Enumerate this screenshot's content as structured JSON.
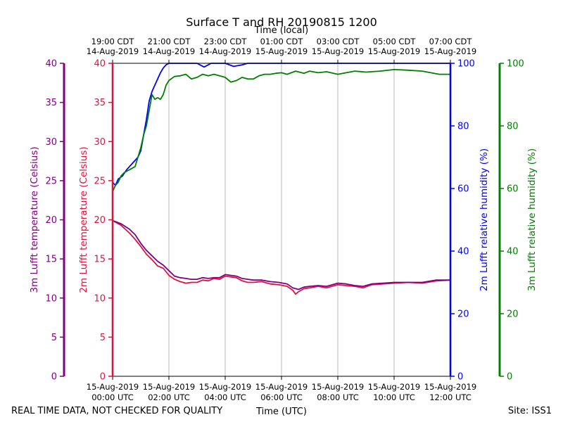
{
  "chart_data": {
    "type": "line",
    "title": "Surface T and RH 20190815 1200",
    "top_axis_title": "Time (local)",
    "bottom_axis_title": "Time (UTC)",
    "footer_left": "REAL TIME DATA, NOT CHECKED FOR QUALITY",
    "footer_right": "Site: ISS1",
    "x_range_hours": [
      0,
      12
    ],
    "x_ticks_hours": [
      0,
      2,
      4,
      6,
      8,
      10,
      12
    ],
    "x_ticks_utc": [
      [
        "15-Aug-2019",
        "00:00 UTC"
      ],
      [
        "15-Aug-2019",
        "02:00 UTC"
      ],
      [
        "15-Aug-2019",
        "04:00 UTC"
      ],
      [
        "15-Aug-2019",
        "06:00 UTC"
      ],
      [
        "15-Aug-2019",
        "08:00 UTC"
      ],
      [
        "15-Aug-2019",
        "10:00 UTC"
      ],
      [
        "15-Aug-2019",
        "12:00 UTC"
      ]
    ],
    "x_ticks_local": [
      [
        "19:00 CDT",
        "14-Aug-2019"
      ],
      [
        "21:00 CDT",
        "14-Aug-2019"
      ],
      [
        "23:00 CDT",
        "14-Aug-2019"
      ],
      [
        "01:00 CDT",
        "15-Aug-2019"
      ],
      [
        "03:00 CDT",
        "15-Aug-2019"
      ],
      [
        "05:00 CDT",
        "15-Aug-2019"
      ],
      [
        "07:00 CDT",
        "15-Aug-2019"
      ]
    ],
    "axes": {
      "t3": {
        "label": "3m Lufft temperature (Celsius)",
        "range": [
          0,
          40
        ],
        "ticks": [
          0,
          5,
          10,
          15,
          20,
          25,
          30,
          35,
          40
        ],
        "color": "#800080"
      },
      "t2": {
        "label": "2m Lufft temperature (Celsius)",
        "range": [
          0,
          40
        ],
        "ticks": [
          0,
          5,
          10,
          15,
          20,
          25,
          30,
          35,
          40
        ],
        "color": "#dc143c"
      },
      "rh2": {
        "label": "2m Lufft relative humidity (%)",
        "range": [
          0,
          100
        ],
        "ticks": [
          0,
          20,
          40,
          60,
          80,
          100
        ],
        "color": "#0000ff"
      },
      "rh3": {
        "label": "3m Lufft relative humidity (%)",
        "range": [
          0,
          100
        ],
        "ticks": [
          0,
          20,
          40,
          60,
          80,
          100
        ],
        "color": "#008000"
      }
    },
    "series": [
      {
        "name": "2m Lufft relative humidity",
        "axis": "rh2",
        "color": "#0000ff",
        "points": [
          [
            0,
            62
          ],
          [
            0.1,
            61
          ],
          [
            0.2,
            63
          ],
          [
            0.35,
            64
          ],
          [
            0.5,
            66
          ],
          [
            0.6,
            67
          ],
          [
            0.7,
            68
          ],
          [
            0.8,
            69
          ],
          [
            0.9,
            70
          ],
          [
            1.0,
            72
          ],
          [
            1.1,
            77
          ],
          [
            1.2,
            82
          ],
          [
            1.3,
            88
          ],
          [
            1.4,
            91
          ],
          [
            1.5,
            93
          ],
          [
            1.6,
            95
          ],
          [
            1.7,
            97
          ],
          [
            1.8,
            98.5
          ],
          [
            1.9,
            99.5
          ],
          [
            2.0,
            100
          ],
          [
            2.5,
            100
          ],
          [
            3.0,
            100
          ],
          [
            3.25,
            98.8
          ],
          [
            3.5,
            100
          ],
          [
            4.0,
            100
          ],
          [
            4.3,
            99
          ],
          [
            4.6,
            99.5
          ],
          [
            4.8,
            100
          ],
          [
            6.0,
            100
          ],
          [
            8.0,
            100
          ],
          [
            10.0,
            100
          ],
          [
            12.0,
            100
          ]
        ]
      },
      {
        "name": "3m Lufft relative humidity",
        "axis": "rh3",
        "color": "#008000",
        "points": [
          [
            0,
            59
          ],
          [
            0.1,
            61
          ],
          [
            0.2,
            62
          ],
          [
            0.3,
            64
          ],
          [
            0.4,
            65
          ],
          [
            0.5,
            65.5
          ],
          [
            0.6,
            66
          ],
          [
            0.7,
            66.5
          ],
          [
            0.8,
            67
          ],
          [
            0.9,
            70
          ],
          [
            1.0,
            73
          ],
          [
            1.1,
            77
          ],
          [
            1.2,
            80
          ],
          [
            1.3,
            85
          ],
          [
            1.4,
            90
          ],
          [
            1.5,
            88.5
          ],
          [
            1.6,
            89
          ],
          [
            1.7,
            88.5
          ],
          [
            1.8,
            90
          ],
          [
            1.9,
            93
          ],
          [
            2.0,
            94.5
          ],
          [
            2.2,
            95.8
          ],
          [
            2.4,
            96
          ],
          [
            2.6,
            96.5
          ],
          [
            2.8,
            95
          ],
          [
            3.0,
            95.5
          ],
          [
            3.2,
            96.5
          ],
          [
            3.4,
            96
          ],
          [
            3.6,
            96.5
          ],
          [
            3.8,
            96
          ],
          [
            4.0,
            95.5
          ],
          [
            4.2,
            94
          ],
          [
            4.4,
            94.5
          ],
          [
            4.6,
            95.5
          ],
          [
            4.8,
            95
          ],
          [
            5.0,
            95
          ],
          [
            5.2,
            96
          ],
          [
            5.4,
            96.5
          ],
          [
            5.6,
            96.5
          ],
          [
            5.8,
            96.8
          ],
          [
            6.0,
            97
          ],
          [
            6.2,
            96.5
          ],
          [
            6.5,
            97.5
          ],
          [
            6.8,
            96.8
          ],
          [
            7.0,
            97.5
          ],
          [
            7.3,
            97
          ],
          [
            7.6,
            97.3
          ],
          [
            8.0,
            96.5
          ],
          [
            8.3,
            97
          ],
          [
            8.6,
            97.5
          ],
          [
            9.0,
            97.2
          ],
          [
            9.5,
            97.5
          ],
          [
            10.0,
            98
          ],
          [
            10.5,
            97.8
          ],
          [
            11.0,
            97.5
          ],
          [
            11.3,
            97
          ],
          [
            11.6,
            96.5
          ],
          [
            12.0,
            96.5
          ]
        ]
      },
      {
        "name": "2m Lufft temperature",
        "axis": "t2",
        "color": "#dc143c",
        "points": [
          [
            0,
            19.9
          ],
          [
            0.3,
            19.3
          ],
          [
            0.6,
            18.3
          ],
          [
            0.8,
            17.5
          ],
          [
            1.0,
            16.6
          ],
          [
            1.2,
            15.6
          ],
          [
            1.4,
            14.9
          ],
          [
            1.6,
            14.1
          ],
          [
            1.8,
            13.8
          ],
          [
            2.0,
            12.9
          ],
          [
            2.2,
            12.4
          ],
          [
            2.4,
            12.1
          ],
          [
            2.6,
            11.9
          ],
          [
            2.8,
            12.0
          ],
          [
            3.0,
            12.0
          ],
          [
            3.2,
            12.3
          ],
          [
            3.4,
            12.2
          ],
          [
            3.6,
            12.5
          ],
          [
            3.8,
            12.4
          ],
          [
            4.0,
            12.8
          ],
          [
            4.2,
            12.7
          ],
          [
            4.4,
            12.6
          ],
          [
            4.6,
            12.2
          ],
          [
            4.8,
            12.0
          ],
          [
            5.0,
            12.0
          ],
          [
            5.3,
            12.1
          ],
          [
            5.6,
            11.8
          ],
          [
            5.9,
            11.7
          ],
          [
            6.2,
            11.5
          ],
          [
            6.4,
            11.0
          ],
          [
            6.5,
            10.5
          ],
          [
            6.6,
            10.8
          ],
          [
            6.8,
            11.2
          ],
          [
            7.0,
            11.3
          ],
          [
            7.3,
            11.5
          ],
          [
            7.6,
            11.3
          ],
          [
            8.0,
            11.7
          ],
          [
            8.3,
            11.6
          ],
          [
            8.6,
            11.5
          ],
          [
            8.9,
            11.3
          ],
          [
            9.2,
            11.7
          ],
          [
            9.6,
            11.8
          ],
          [
            10.0,
            11.9
          ],
          [
            10.5,
            12.0
          ],
          [
            11.0,
            11.9
          ],
          [
            11.5,
            12.2
          ],
          [
            12.0,
            12.3
          ]
        ]
      },
      {
        "name": "3m Lufft temperature",
        "axis": "t3",
        "color": "#800080",
        "points": [
          [
            0,
            19.9
          ],
          [
            0.3,
            19.5
          ],
          [
            0.6,
            18.8
          ],
          [
            0.8,
            18.1
          ],
          [
            1.0,
            17.0
          ],
          [
            1.2,
            16.1
          ],
          [
            1.4,
            15.4
          ],
          [
            1.6,
            14.7
          ],
          [
            1.8,
            14.2
          ],
          [
            2.0,
            13.5
          ],
          [
            2.2,
            12.8
          ],
          [
            2.4,
            12.6
          ],
          [
            2.6,
            12.5
          ],
          [
            2.8,
            12.4
          ],
          [
            3.0,
            12.4
          ],
          [
            3.2,
            12.6
          ],
          [
            3.4,
            12.5
          ],
          [
            3.6,
            12.6
          ],
          [
            3.8,
            12.6
          ],
          [
            4.0,
            13.0
          ],
          [
            4.2,
            12.9
          ],
          [
            4.4,
            12.8
          ],
          [
            4.6,
            12.5
          ],
          [
            4.8,
            12.4
          ],
          [
            5.0,
            12.3
          ],
          [
            5.3,
            12.3
          ],
          [
            5.6,
            12.1
          ],
          [
            5.9,
            12.0
          ],
          [
            6.2,
            11.8
          ],
          [
            6.4,
            11.3
          ],
          [
            6.6,
            11.1
          ],
          [
            6.8,
            11.4
          ],
          [
            7.0,
            11.5
          ],
          [
            7.3,
            11.6
          ],
          [
            7.6,
            11.5
          ],
          [
            8.0,
            11.9
          ],
          [
            8.3,
            11.8
          ],
          [
            8.6,
            11.6
          ],
          [
            8.9,
            11.5
          ],
          [
            9.2,
            11.8
          ],
          [
            9.6,
            11.9
          ],
          [
            10.0,
            12.0
          ],
          [
            10.5,
            12.0
          ],
          [
            11.0,
            12.0
          ],
          [
            11.5,
            12.3
          ],
          [
            12.0,
            12.3
          ]
        ]
      }
    ]
  }
}
